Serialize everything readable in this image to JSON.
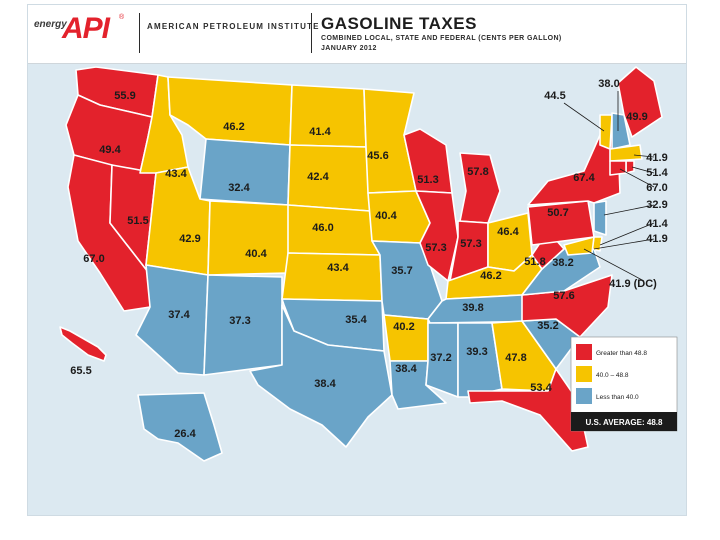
{
  "header": {
    "logo_small": "energy",
    "logo_main": "API",
    "logo_mark": "®",
    "org_name": "AMERICAN PETROLEUM INSTITUTE",
    "title": "GASOLINE TAXES",
    "subtitle": "COMBINED LOCAL, STATE AND FEDERAL (CENTS PER GALLON)",
    "date": "JANUARY 2012"
  },
  "colors": {
    "high": "#e3222c",
    "mid": "#f6c400",
    "low": "#6aa4c8",
    "background": "#dce9f1",
    "border": "#ffffff"
  },
  "legend": {
    "items": [
      {
        "label": "Greater than 48.8",
        "category": "high",
        "color": "#e3222c"
      },
      {
        "label": "40.0 – 48.8",
        "category": "mid",
        "color": "#f6c400"
      },
      {
        "label": "Less than 40.0",
        "category": "low",
        "color": "#6aa4c8"
      }
    ],
    "average": "U.S. AVERAGE: 48.8"
  },
  "states": [
    {
      "id": "WA",
      "value": "55.9",
      "category": "high"
    },
    {
      "id": "OR",
      "value": "49.4",
      "category": "high"
    },
    {
      "id": "CA",
      "value": "67.0",
      "category": "high"
    },
    {
      "id": "NV",
      "value": "51.5",
      "category": "high"
    },
    {
      "id": "ID",
      "value": "43.4",
      "category": "mid"
    },
    {
      "id": "MT",
      "value": "46.2",
      "category": "mid"
    },
    {
      "id": "WY",
      "value": "32.4",
      "category": "low"
    },
    {
      "id": "UT",
      "value": "42.9",
      "category": "mid"
    },
    {
      "id": "CO",
      "value": "40.4",
      "category": "mid"
    },
    {
      "id": "AZ",
      "value": "37.4",
      "category": "low"
    },
    {
      "id": "NM",
      "value": "37.3",
      "category": "low"
    },
    {
      "id": "ND",
      "value": "41.4",
      "category": "mid"
    },
    {
      "id": "SD",
      "value": "42.4",
      "category": "mid"
    },
    {
      "id": "NE",
      "value": "46.0",
      "category": "mid"
    },
    {
      "id": "KS",
      "value": "43.4",
      "category": "mid"
    },
    {
      "id": "OK",
      "value": "35.4",
      "category": "low"
    },
    {
      "id": "TX",
      "value": "38.4",
      "category": "low"
    },
    {
      "id": "MN",
      "value": "45.6",
      "category": "mid"
    },
    {
      "id": "IA",
      "value": "40.4",
      "category": "mid"
    },
    {
      "id": "MO",
      "value": "35.7",
      "category": "low"
    },
    {
      "id": "AR",
      "value": "40.2",
      "category": "mid"
    },
    {
      "id": "LA",
      "value": "38.4",
      "category": "low"
    },
    {
      "id": "WI",
      "value": "51.3",
      "category": "high"
    },
    {
      "id": "IL",
      "value": "57.3",
      "category": "high"
    },
    {
      "id": "MI",
      "value": "57.8",
      "category": "high"
    },
    {
      "id": "IN",
      "value": "57.3",
      "category": "high"
    },
    {
      "id": "OH",
      "value": "46.4",
      "category": "mid"
    },
    {
      "id": "KY",
      "value": "46.2",
      "category": "mid"
    },
    {
      "id": "TN",
      "value": "39.8",
      "category": "low"
    },
    {
      "id": "MS",
      "value": "37.2",
      "category": "low"
    },
    {
      "id": "AL",
      "value": "39.3",
      "category": "low"
    },
    {
      "id": "GA",
      "value": "47.8",
      "category": "mid"
    },
    {
      "id": "FL",
      "value": "53.4",
      "category": "high"
    },
    {
      "id": "SC",
      "value": "35.2",
      "category": "low"
    },
    {
      "id": "NC",
      "value": "57.6",
      "category": "high"
    },
    {
      "id": "VA",
      "value": "38.2",
      "category": "low"
    },
    {
      "id": "WV",
      "value": "51.8",
      "category": "high"
    },
    {
      "id": "PA",
      "value": "50.7",
      "category": "high"
    },
    {
      "id": "NY",
      "value": "67.4",
      "category": "high"
    },
    {
      "id": "ME",
      "value": "49.9",
      "category": "high"
    },
    {
      "id": "AK",
      "value": "26.4",
      "category": "low"
    },
    {
      "id": "HI",
      "value": "65.5",
      "category": "high"
    }
  ],
  "callouts": [
    {
      "id": "VT",
      "value": "44.5",
      "category": "mid"
    },
    {
      "id": "NH",
      "value": "38.0",
      "category": "low"
    },
    {
      "id": "MA",
      "value": "41.9",
      "category": "mid"
    },
    {
      "id": "RI",
      "value": "51.4",
      "category": "high"
    },
    {
      "id": "CT",
      "value": "67.0",
      "category": "high"
    },
    {
      "id": "NJ",
      "value": "32.9",
      "category": "low"
    },
    {
      "id": "DE",
      "value": "41.4",
      "category": "mid"
    },
    {
      "id": "MD",
      "value": "41.9",
      "category": "mid"
    },
    {
      "id": "DC",
      "value": "41.9 (DC)",
      "category": "mid"
    }
  ]
}
